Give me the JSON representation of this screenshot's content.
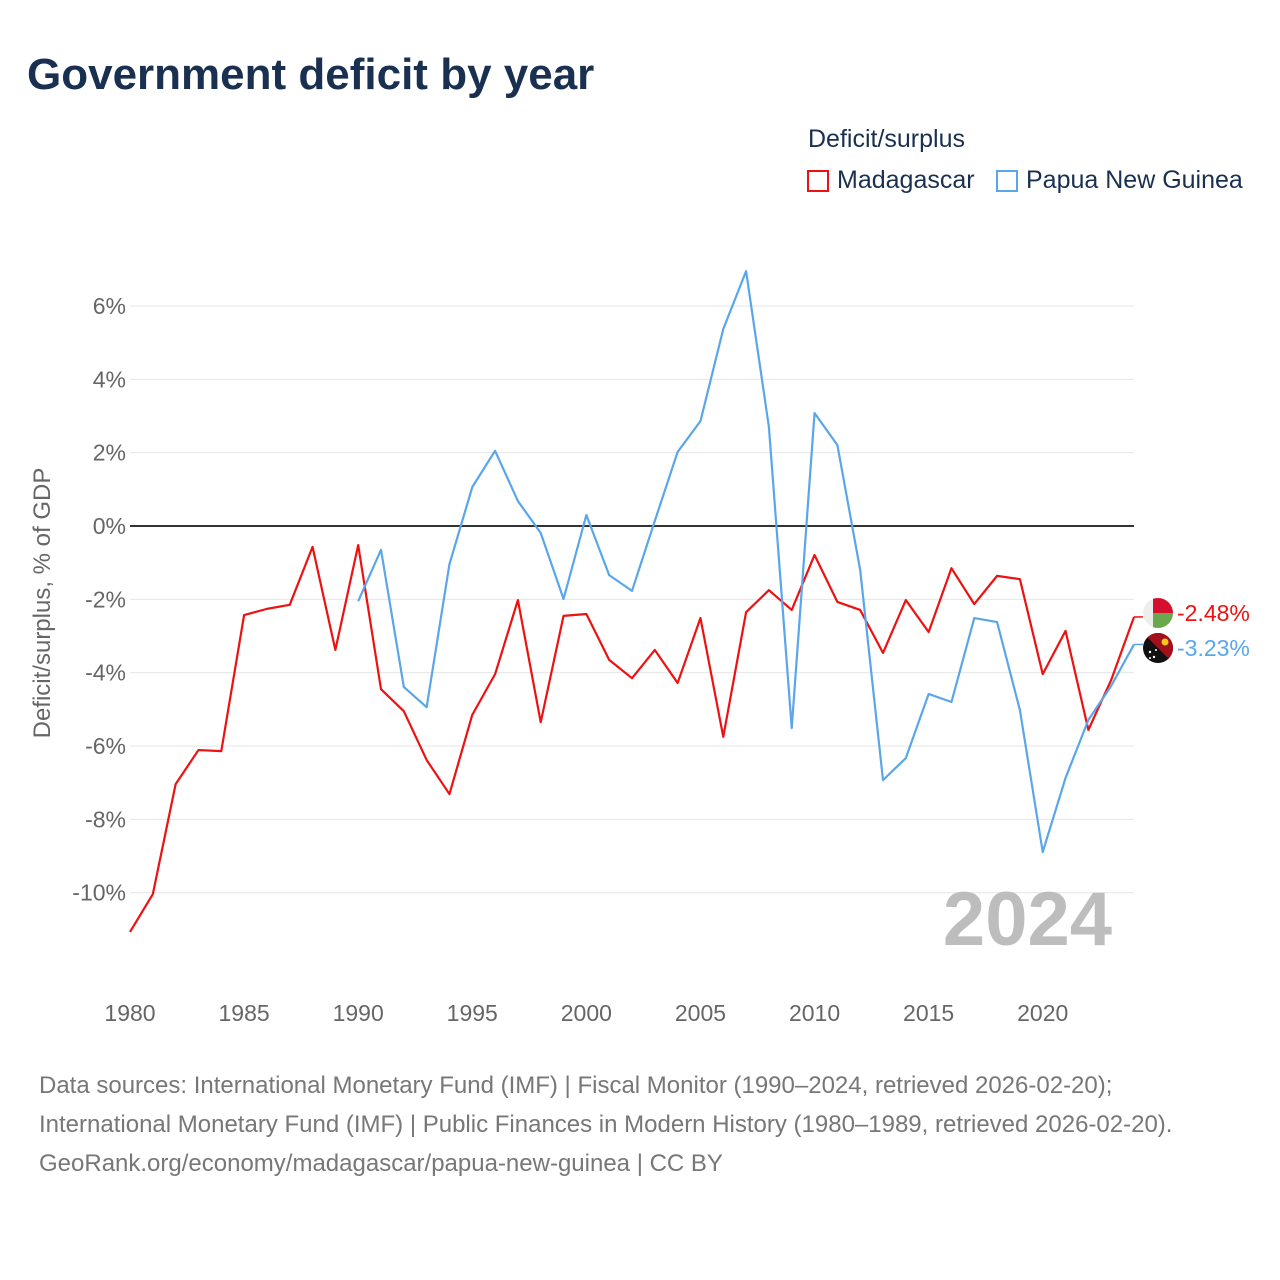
{
  "chart_data": {
    "type": "line",
    "title": "Government deficit by year",
    "ylabel": "Deficit/surplus, % of GDP",
    "xlabel": "",
    "legend_title": "Deficit/surplus",
    "legend_position": "top-right",
    "xlim": [
      1980,
      2024
    ],
    "ylim": [
      -12,
      7.5
    ],
    "x_ticks": [
      "1980",
      "1985",
      "1990",
      "1995",
      "2000",
      "2005",
      "2010",
      "2015",
      "2020"
    ],
    "y_ticks": [
      "6%",
      "4%",
      "2%",
      "0%",
      "-2%",
      "-4%",
      "-6%",
      "-8%",
      "-10%"
    ],
    "y_tick_values": [
      6,
      4,
      2,
      0,
      -2,
      -4,
      -6,
      -8,
      -10
    ],
    "x_tick_values": [
      1980,
      1985,
      1990,
      1995,
      2000,
      2005,
      2010,
      2015,
      2020
    ],
    "year_watermark": "2024",
    "series": [
      {
        "name": "Madagascar",
        "color": "#ee1111",
        "end_label": "-2.48%",
        "flag": "madagascar-flag",
        "x": [
          1980,
          1981,
          1982,
          1983,
          1984,
          1985,
          1986,
          1987,
          1988,
          1989,
          1990,
          1991,
          1992,
          1993,
          1994,
          1995,
          1996,
          1997,
          1998,
          1999,
          2000,
          2001,
          2002,
          2003,
          2004,
          2005,
          2006,
          2007,
          2008,
          2009,
          2010,
          2011,
          2012,
          2013,
          2014,
          2015,
          2016,
          2017,
          2018,
          2019,
          2020,
          2021,
          2022,
          2023,
          2024
        ],
        "values": [
          -11.07,
          -10.04,
          -7.04,
          -6.11,
          -6.14,
          -2.43,
          -2.26,
          -2.15,
          -0.57,
          -3.38,
          -0.52,
          -4.45,
          -5.05,
          -6.38,
          -7.31,
          -5.15,
          -4.04,
          -2.02,
          -5.35,
          -2.45,
          -2.4,
          -3.65,
          -4.15,
          -3.38,
          -4.28,
          -2.51,
          -5.75,
          -2.35,
          -1.75,
          -2.29,
          -0.79,
          -2.07,
          -2.29,
          -3.46,
          -2.02,
          -2.89,
          -1.15,
          -2.13,
          -1.36,
          -1.45,
          -4.04,
          -2.86,
          -5.56,
          -4.2,
          -2.48
        ]
      },
      {
        "name": "Papua New Guinea",
        "color": "#5aa6ea",
        "end_label": "-3.23%",
        "flag": "png-flag",
        "x": [
          1990,
          1991,
          1992,
          1993,
          1994,
          1995,
          1996,
          1997,
          1998,
          1999,
          2000,
          2001,
          2002,
          2003,
          2004,
          2005,
          2006,
          2007,
          2008,
          2009,
          2010,
          2011,
          2012,
          2013,
          2014,
          2015,
          2016,
          2017,
          2018,
          2019,
          2020,
          2021,
          2022,
          2023,
          2024
        ],
        "values": [
          -2.05,
          -0.65,
          -4.39,
          -4.94,
          -1.04,
          1.06,
          2.05,
          0.68,
          -0.19,
          -1.99,
          0.3,
          -1.34,
          -1.77,
          0.14,
          2.02,
          2.86,
          5.37,
          6.95,
          2.7,
          -5.51,
          3.08,
          2.21,
          -1.2,
          -6.93,
          -6.33,
          -4.58,
          -4.8,
          -2.51,
          -2.62,
          -5.02,
          -8.89,
          -6.87,
          -5.29,
          -4.36,
          -3.23
        ]
      }
    ]
  },
  "footer": {
    "source_line1": "Data sources: International Monetary Fund (IMF) | Fiscal Monitor (1990–2024, retrieved 2026-02-20); International Monetary Fund (IMF) | Public Finances in Modern History (1980–1989, retrieved 2026-02-20).",
    "source_line2": "GeoRank.org/economy/madagascar/papua-new-guinea | CC BY"
  }
}
